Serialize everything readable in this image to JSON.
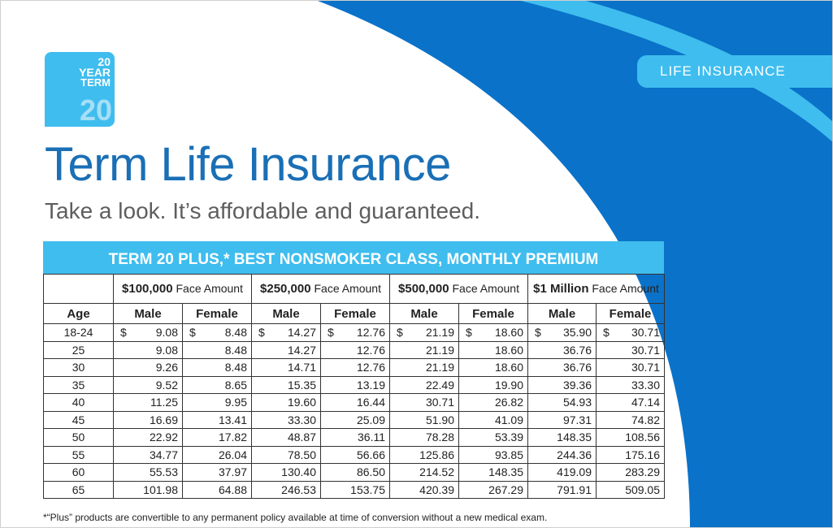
{
  "badge": {
    "line1": "20",
    "line2": "YEAR",
    "line3": "TERM",
    "big": "20"
  },
  "tab_label": "LIFE INSURANCE",
  "title": "Term Life Insurance",
  "subtitle": "Take a look. It’s affordable and guaranteed.",
  "colors": {
    "brand_blue": "#1a6fb5",
    "light_blue": "#3fbdee",
    "dark_blue": "#0a72c9"
  },
  "table": {
    "heading": "TERM 20 PLUS,* BEST NONSMOKER CLASS, MONTHLY PREMIUM",
    "face_amounts": [
      {
        "amount": "$100,000",
        "suffix": " Face Amount"
      },
      {
        "amount": "$250,000",
        "suffix": " Face Amount"
      },
      {
        "amount": "$500,000",
        "suffix": " Face Amount"
      },
      {
        "amount": "$1 Million",
        "suffix": " Face Amount"
      }
    ],
    "age_header": "Age",
    "male_label": "Male",
    "female_label": "Female",
    "currency": "$",
    "rows": [
      {
        "age": "18-24",
        "values": [
          "9.08",
          "8.48",
          "14.27",
          "12.76",
          "21.19",
          "18.60",
          "35.90",
          "30.71"
        ]
      },
      {
        "age": "25",
        "values": [
          "9.08",
          "8.48",
          "14.27",
          "12.76",
          "21.19",
          "18.60",
          "36.76",
          "30.71"
        ]
      },
      {
        "age": "30",
        "values": [
          "9.26",
          "8.48",
          "14.71",
          "12.76",
          "21.19",
          "18.60",
          "36.76",
          "30.71"
        ]
      },
      {
        "age": "35",
        "values": [
          "9.52",
          "8.65",
          "15.35",
          "13.19",
          "22.49",
          "19.90",
          "39.36",
          "33.30"
        ]
      },
      {
        "age": "40",
        "values": [
          "11.25",
          "9.95",
          "19.60",
          "16.44",
          "30.71",
          "26.82",
          "54.93",
          "47.14"
        ]
      },
      {
        "age": "45",
        "values": [
          "16.69",
          "13.41",
          "33.30",
          "25.09",
          "51.90",
          "41.09",
          "97.31",
          "74.82"
        ]
      },
      {
        "age": "50",
        "values": [
          "22.92",
          "17.82",
          "48.87",
          "36.11",
          "78.28",
          "53.39",
          "148.35",
          "108.56"
        ]
      },
      {
        "age": "55",
        "values": [
          "34.77",
          "26.04",
          "78.50",
          "56.66",
          "125.86",
          "93.85",
          "244.36",
          "175.16"
        ]
      },
      {
        "age": "60",
        "values": [
          "55.53",
          "37.97",
          "130.40",
          "86.50",
          "214.52",
          "148.35",
          "419.09",
          "283.29"
        ]
      },
      {
        "age": "65",
        "values": [
          "101.98",
          "64.88",
          "246.53",
          "153.75",
          "420.39",
          "267.29",
          "791.91",
          "509.05"
        ]
      }
    ]
  },
  "footnote": "*“Plus” products are convertible to any permanent policy available at time of conversion without a new medical exam."
}
